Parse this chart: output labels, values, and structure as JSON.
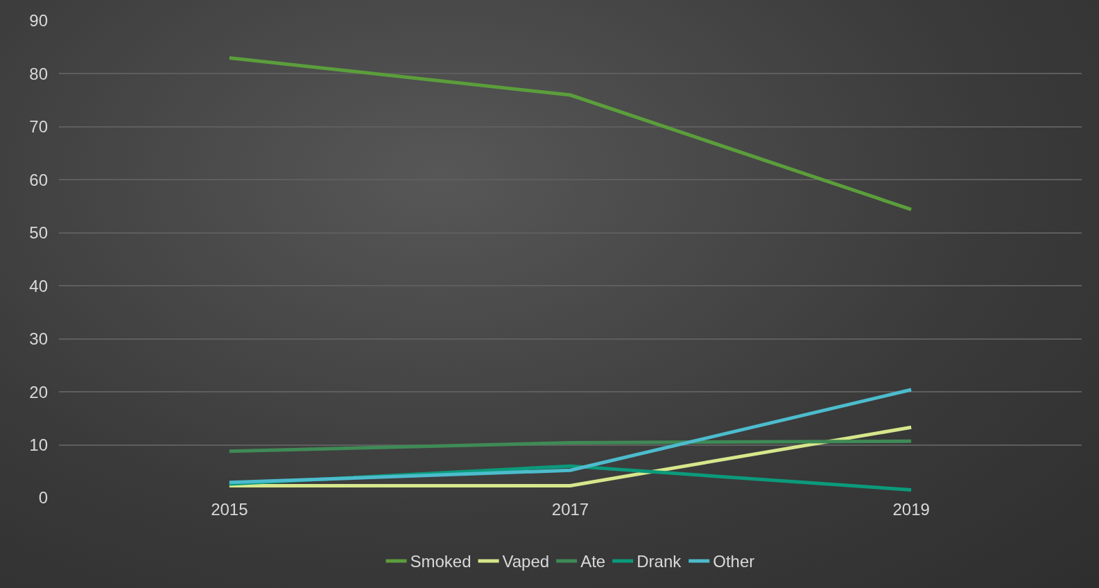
{
  "chart_data": {
    "type": "line",
    "categories": [
      "2015",
      "2017",
      "2019"
    ],
    "series": [
      {
        "name": "Smoked",
        "color": "#5b9e3b",
        "values": [
          83,
          76,
          54.4
        ]
      },
      {
        "name": "Vaped",
        "color": "#d6e78c",
        "values": [
          2.3,
          2.3,
          13.3
        ]
      },
      {
        "name": "Ate",
        "color": "#3f8a56",
        "values": [
          8.8,
          10.4,
          10.7
        ]
      },
      {
        "name": "Drank",
        "color": "#0b9a7b",
        "values": [
          2.6,
          6,
          1.5
        ]
      },
      {
        "name": "Other",
        "color": "#4cbccd",
        "values": [
          2.9,
          5.2,
          20.4
        ]
      }
    ],
    "ylim": [
      0,
      90
    ],
    "yticks": [
      0,
      10,
      20,
      30,
      40,
      50,
      60,
      70,
      80,
      90
    ],
    "grid": "y",
    "legend": "bottom",
    "marker": "none",
    "line_style": "solid"
  }
}
